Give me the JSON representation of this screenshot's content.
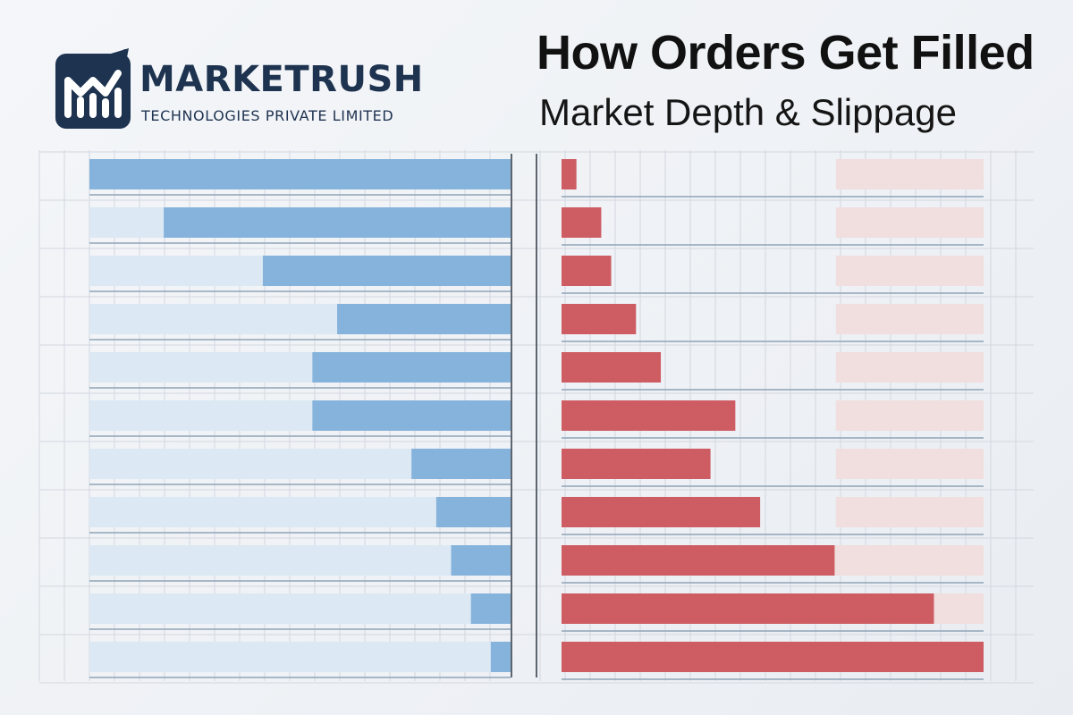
{
  "brand": {
    "name": "MARKETRUSH",
    "subtitle": "TECHNOLOGIES PRIVATE LIMITED",
    "logo_icon": "mr-monogram-rising-arrow-icon",
    "color": "#1e3350"
  },
  "header": {
    "title": "How Orders Get Filled",
    "subtitle": "Market Depth & Slippage"
  },
  "colors": {
    "bid": "#86b3dc",
    "bid_track": "#dce8f3",
    "ask": "#cd5d63",
    "ask_track": "#f1dede",
    "grid": "#d2d8e0"
  },
  "chart_data": {
    "type": "bar",
    "grid": true,
    "legend": "none",
    "title": "",
    "xlabel": "",
    "ylabel": "",
    "levels": 11,
    "series": [
      {
        "side": "bid",
        "orientation": "right-to-left",
        "values": [
          8.5,
          7.0,
          5.0,
          3.5,
          4.0,
          4.0,
          2.0,
          1.5,
          1.2,
          0.8,
          0.4
        ],
        "xlim": [
          0,
          8.5
        ]
      },
      {
        "side": "ask",
        "orientation": "left-to-right",
        "values": [
          0.3,
          0.8,
          1.0,
          1.5,
          2.0,
          3.5,
          3.0,
          4.0,
          5.5,
          7.5,
          8.5
        ],
        "xlim": [
          0,
          8.5
        ]
      }
    ]
  }
}
